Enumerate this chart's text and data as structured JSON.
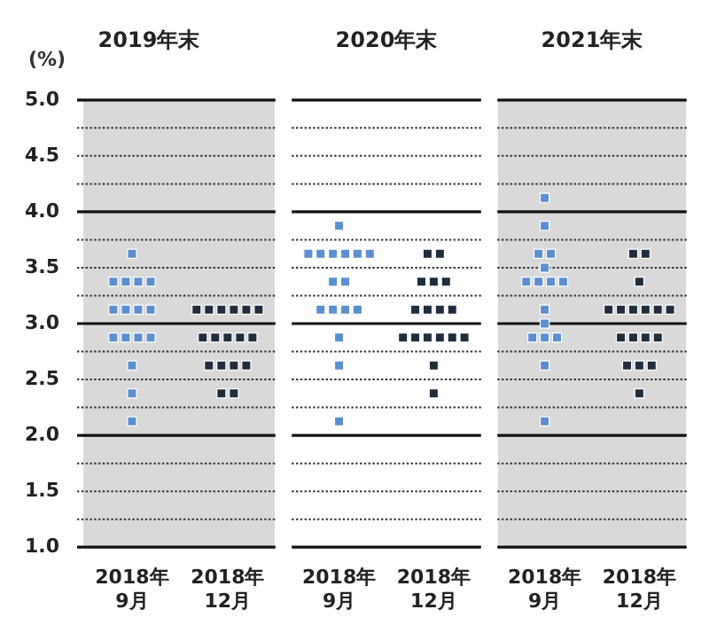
{
  "chart_data": [
    {
      "type": "scatter",
      "title": "2019年末",
      "ylabel": "(%)",
      "categories": [
        "2018年\n9月",
        "2018年\n12月"
      ],
      "marker": "square",
      "grid": "y",
      "ylim": [
        1.0,
        5.0
      ],
      "yticks": [
        {
          "value": 1,
          "label": "1.0"
        },
        {
          "value": 1.25,
          "label": null
        },
        1.5,
        {
          "value": 1.75,
          "label": null
        },
        {
          "value": 2,
          "label": "2.0"
        },
        {
          "value": 2.25,
          "label": null
        },
        2.5,
        {
          "value": 2.75,
          "label": null
        },
        {
          "value": 3,
          "label": "3.0"
        },
        {
          "value": 3.25,
          "label": null
        },
        3.5,
        {
          "value": 3.75,
          "label": null
        },
        {
          "value": 4,
          "label": "4.0"
        },
        {
          "value": 4.25,
          "label": null
        },
        4.5,
        {
          "value": 4.75,
          "label": null
        },
        {
          "value": 5,
          "label": "5.0"
        }
      ],
      "series": [
        {
          "color": "#5b8fd0",
          "x": [
            "2018年\n9月",
            "2018年\n9月",
            "2018年\n9月",
            "2018年\n9月",
            "2018年\n9月",
            "2018年\n9月",
            "2018年\n9月",
            "2018年\n9月",
            "2018年\n9月",
            "2018年\n9月",
            "2018年\n9月",
            "2018年\n9月",
            "2018年\n9月",
            "2018年\n9月",
            "2018年\n9月",
            "2018年\n9月"
          ],
          "values": [
            3.625,
            3.375,
            3.375,
            3.375,
            3.375,
            3.125,
            3.125,
            3.125,
            3.125,
            2.875,
            2.875,
            2.875,
            2.875,
            2.625,
            2.375,
            2.125
          ]
        },
        {
          "color": "#1f2d3d",
          "x": [
            "2018年\n12月",
            "2018年\n12月",
            "2018年\n12月",
            "2018年\n12月",
            "2018年\n12月",
            "2018年\n12月",
            "2018年\n12月",
            "2018年\n12月",
            "2018年\n12月",
            "2018年\n12月",
            "2018年\n12月",
            "2018年\n12月",
            "2018年\n12月",
            "2018年\n12月",
            "2018年\n12月",
            "2018年\n12月",
            "2018年\n12月"
          ],
          "values": [
            3.125,
            3.125,
            3.125,
            3.125,
            3.125,
            3.125,
            2.875,
            2.875,
            2.875,
            2.875,
            2.875,
            2.625,
            2.625,
            2.625,
            2.625,
            2.375,
            2.375
          ]
        }
      ]
    },
    {
      "type": "scatter",
      "title": "2020年末",
      "categories": [
        "2018年\n9月",
        "2018年\n12月"
      ],
      "marker": "square",
      "grid": "y",
      "ylim": [
        1.0,
        5.0
      ],
      "tick_labels": "x",
      "yticks": [
        1.0,
        1.25,
        1.5,
        1.75,
        2.0,
        2.25,
        2.5,
        2.75,
        3.0,
        3.25,
        3.5,
        3.75,
        4.0,
        4.25,
        4.5,
        4.75,
        5.0
      ],
      "series": [
        {
          "color": "#5b8fd0",
          "x": [
            "2018年\n9月",
            "2018年\n9月",
            "2018年\n9月",
            "2018年\n9月",
            "2018年\n9月",
            "2018年\n9月",
            "2018年\n9月",
            "2018年\n9月",
            "2018年\n9月",
            "2018年\n9月",
            "2018年\n9月",
            "2018年\n9月",
            "2018年\n9月",
            "2018年\n9月",
            "2018年\n9月",
            "2018年\n9月"
          ],
          "values": [
            3.875,
            3.625,
            3.625,
            3.625,
            3.625,
            3.625,
            3.625,
            3.375,
            3.375,
            3.125,
            3.125,
            3.125,
            3.125,
            2.875,
            2.625,
            2.125
          ]
        },
        {
          "color": "#1f2d3d",
          "x": [
            "2018年\n12月",
            "2018年\n12月",
            "2018年\n12月",
            "2018年\n12月",
            "2018年\n12月",
            "2018年\n12月",
            "2018年\n12月",
            "2018年\n12月",
            "2018年\n12月",
            "2018年\n12月",
            "2018年\n12月",
            "2018年\n12月",
            "2018年\n12月",
            "2018年\n12月",
            "2018年\n12月",
            "2018年\n12月",
            "2018年\n12月"
          ],
          "values": [
            3.625,
            3.625,
            3.375,
            3.375,
            3.375,
            3.125,
            3.125,
            3.125,
            3.125,
            2.875,
            2.875,
            2.875,
            2.875,
            2.875,
            2.875,
            2.625,
            2.375
          ]
        }
      ]
    },
    {
      "type": "scatter",
      "title": "2021年末",
      "categories": [
        "2018年\n9月",
        "2018年\n12月"
      ],
      "marker": "square",
      "grid": "y",
      "ylim": [
        1.0,
        5.0
      ],
      "tick_labels": "x",
      "yticks": [
        1.0,
        1.25,
        1.5,
        1.75,
        2.0,
        2.25,
        2.5,
        2.75,
        3.0,
        3.25,
        3.5,
        3.75,
        4.0,
        4.25,
        4.5,
        4.75,
        5.0
      ],
      "series": [
        {
          "color": "#5b8fd0",
          "x": [
            "2018年\n9月",
            "2018年\n9月",
            "2018年\n9月",
            "2018年\n9月",
            "2018年\n9月",
            "2018年\n9月",
            "2018年\n9月",
            "2018年\n9月",
            "2018年\n9月",
            "2018年\n9月",
            "2018年\n9月",
            "2018年\n9月",
            "2018年\n9月",
            "2018年\n9月",
            "2018年\n9月",
            "2018年\n9月"
          ],
          "values": [
            4.125,
            3.875,
            3.625,
            3.625,
            3.5,
            3.375,
            3.375,
            3.375,
            3.375,
            3.125,
            3.0,
            2.875,
            2.875,
            2.875,
            2.625,
            2.125
          ]
        },
        {
          "color": "#1f2d3d",
          "x": [
            "2018年\n12月",
            "2018年\n12月",
            "2018年\n12月",
            "2018年\n12月",
            "2018年\n12月",
            "2018年\n12月",
            "2018年\n12月",
            "2018年\n12月",
            "2018年\n12月",
            "2018年\n12月",
            "2018年\n12月",
            "2018年\n12月",
            "2018年\n12月",
            "2018年\n12月",
            "2018年\n12月",
            "2018年\n12月",
            "2018年\n12月"
          ],
          "values": [
            3.625,
            3.625,
            3.375,
            3.125,
            3.125,
            3.125,
            3.125,
            3.125,
            3.125,
            2.875,
            2.875,
            2.875,
            2.875,
            2.625,
            2.625,
            2.625,
            2.375
          ]
        }
      ]
    }
  ]
}
